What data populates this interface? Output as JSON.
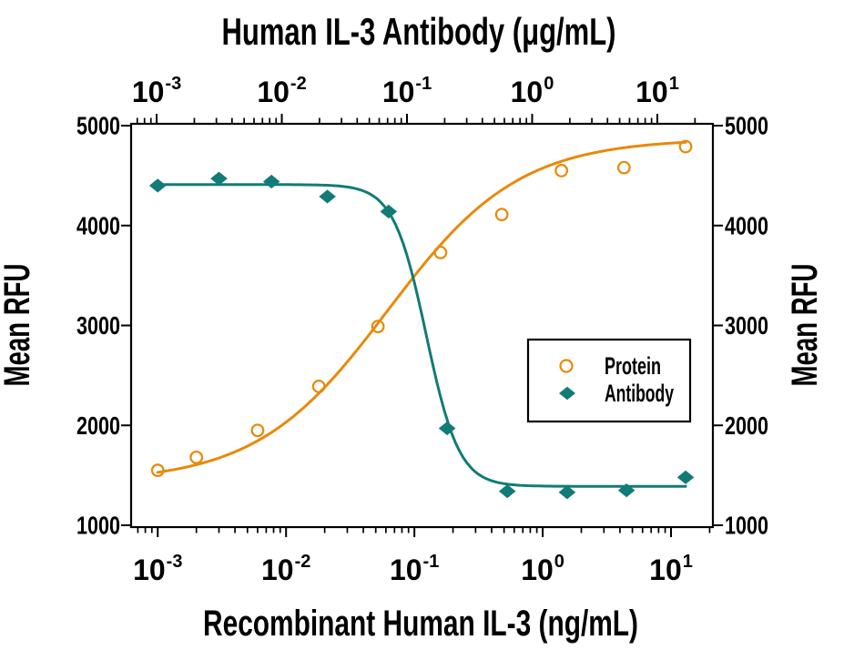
{
  "figure": {
    "title_top": "Human IL-3 Antibody (μg/mL)",
    "xlabel_bottom": "Recombinant Human IL-3 (ng/mL)",
    "ylabel_left": "Mean RFU",
    "ylabel_right": "Mean RFU"
  },
  "colors": {
    "protein_orange": "#E8890B",
    "antibody_teal": "#127B78",
    "axis": "#000000",
    "background": "#FFFFFF"
  },
  "chart_data": {
    "type": "scatter",
    "x_scale": "log",
    "grid": false,
    "title": "Human IL-3 Antibody (μg/mL)",
    "xlabel": "Recombinant Human IL-3 (ng/mL)",
    "ylabel": "Mean RFU",
    "x_axis_bottom": {
      "label": "Recombinant Human IL-3 (ng/mL)",
      "unit": "ng/mL",
      "tick_label_base": "10",
      "tick_exponents": [
        -3,
        -2,
        -1,
        0,
        1
      ],
      "range": [
        0.00062,
        21.2
      ]
    },
    "x_axis_top": {
      "label": "Human IL-3 Antibody (μg/mL)",
      "unit": "μg/mL",
      "tick_label_base": "10",
      "tick_exponents": [
        -3,
        -2,
        -1,
        0,
        1
      ],
      "range": [
        0.000625,
        27.8
      ]
    },
    "y_axis": {
      "label": "Mean RFU",
      "ticks": [
        1000,
        2000,
        3000,
        4000,
        5000
      ],
      "range": [
        1000,
        5000
      ],
      "mirrored_right": true
    },
    "legend": {
      "position": "inside-lower-right",
      "items": [
        "Protein",
        "Antibody"
      ]
    },
    "series": [
      {
        "name": "Protein",
        "marker": "open-circle",
        "color": "#E8890B",
        "x": [
          0.001,
          0.002,
          0.006,
          0.018,
          0.052,
          0.16,
          0.48,
          1.4,
          4.3,
          13
        ],
        "y": [
          1550,
          1680,
          1950,
          2390,
          2990,
          3730,
          4110,
          4550,
          4580,
          4790
        ],
        "fit": {
          "type": "4PL",
          "direction": "increasing",
          "bottom": 1430,
          "top": 4870,
          "ec50": 0.062,
          "hill": 0.85,
          "x_start": 0.001,
          "x_end": 13
        }
      },
      {
        "name": "Antibody",
        "marker": "filled-diamond",
        "color": "#127B78",
        "x": [
          0.001,
          0.003,
          0.0077,
          0.021,
          0.063,
          0.18,
          0.53,
          1.55,
          4.5,
          13
        ],
        "y": [
          4400,
          4470,
          4440,
          4290,
          4140,
          1970,
          1340,
          1330,
          1350,
          1480
        ],
        "fit": {
          "type": "4PL",
          "direction": "decreasing",
          "bottom": 1390,
          "top": 4410,
          "ec50": 0.124,
          "hill": 3.4,
          "x_start": 0.001,
          "x_end": 13
        }
      }
    ]
  }
}
